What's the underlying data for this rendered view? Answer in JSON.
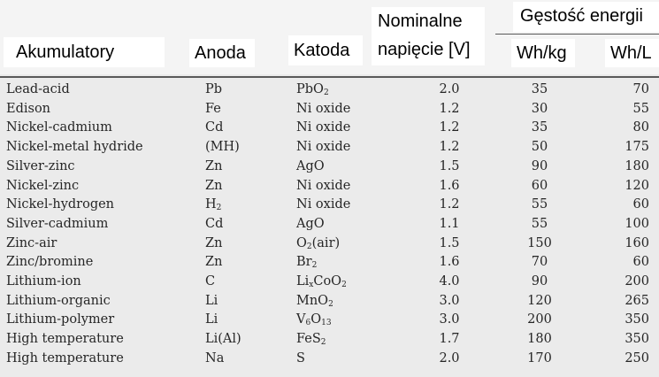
{
  "header": {
    "akumulatory": "Akumulatory",
    "anoda": "Anoda",
    "katoda": "Katoda",
    "nominalne_line1": "Nominalne",
    "nominalne_line2": "napięcie [V]",
    "gestosc": "Gęstość energii",
    "whkg": "Wh/kg",
    "whl": "Wh/L"
  },
  "rows": [
    {
      "name": "Lead-acid",
      "anode": "Pb",
      "cathode_pre": "PbO",
      "cathode_sub": "2",
      "cathode_post": "",
      "cathode_sub2": "",
      "voltage": "2.0",
      "whkg": "35",
      "whl": "70"
    },
    {
      "name": "Edison",
      "anode": "Fe",
      "cathode_pre": "Ni oxide",
      "cathode_sub": "",
      "cathode_post": "",
      "cathode_sub2": "",
      "voltage": "1.2",
      "whkg": "30",
      "whl": "55"
    },
    {
      "name": "Nickel-cadmium",
      "anode": "Cd",
      "cathode_pre": "Ni oxide",
      "cathode_sub": "",
      "cathode_post": "",
      "cathode_sub2": "",
      "voltage": "1.2",
      "whkg": "35",
      "whl": "80"
    },
    {
      "name": "Nickel-metal hydride",
      "anode": "(MH)",
      "cathode_pre": "Ni oxide",
      "cathode_sub": "",
      "cathode_post": "",
      "cathode_sub2": "",
      "voltage": "1.2",
      "whkg": "50",
      "whl": "175"
    },
    {
      "name": "Silver-zinc",
      "anode": "Zn",
      "cathode_pre": "AgO",
      "cathode_sub": "",
      "cathode_post": "",
      "cathode_sub2": "",
      "voltage": "1.5",
      "whkg": "90",
      "whl": "180"
    },
    {
      "name": "Nickel-zinc",
      "anode": "Zn",
      "cathode_pre": "Ni oxide",
      "cathode_sub": "",
      "cathode_post": "",
      "cathode_sub2": "",
      "voltage": "1.6",
      "whkg": "60",
      "whl": "120"
    },
    {
      "name": "Nickel-hydrogen",
      "anode": "H",
      "anode_sub": "2",
      "cathode_pre": "Ni oxide",
      "cathode_sub": "",
      "cathode_post": "",
      "cathode_sub2": "",
      "voltage": "1.2",
      "whkg": "55",
      "whl": "60"
    },
    {
      "name": "Silver-cadmium",
      "anode": "Cd",
      "cathode_pre": "AgO",
      "cathode_sub": "",
      "cathode_post": "",
      "cathode_sub2": "",
      "voltage": "1.1",
      "whkg": "55",
      "whl": "100"
    },
    {
      "name": "Zinc-air",
      "anode": "Zn",
      "cathode_pre": "O",
      "cathode_sub": "2",
      "cathode_post": "(air)",
      "cathode_sub2": "",
      "voltage": "1.5",
      "whkg": "150",
      "whl": "160"
    },
    {
      "name": "Zinc/bromine",
      "anode": "Zn",
      "cathode_pre": "Br",
      "cathode_sub": "2",
      "cathode_post": "",
      "cathode_sub2": "",
      "voltage": "1.6",
      "whkg": "70",
      "whl": "60"
    },
    {
      "name": "Lithium-ion",
      "anode": "C",
      "cathode_pre": "Li",
      "cathode_sub": "x",
      "cathode_post": "CoO",
      "cathode_sub2": "2",
      "voltage": "4.0",
      "whkg": "90",
      "whl": "200"
    },
    {
      "name": "Lithium-organic",
      "anode": "Li",
      "cathode_pre": "MnO",
      "cathode_sub": "2",
      "cathode_post": "",
      "cathode_sub2": "",
      "voltage": "3.0",
      "whkg": "120",
      "whl": "265"
    },
    {
      "name": "Lithium-polymer",
      "anode": "Li",
      "cathode_pre": "V",
      "cathode_sub": "6",
      "cathode_post": "O",
      "cathode_sub2": "13",
      "voltage": "3.0",
      "whkg": "200",
      "whl": "350"
    },
    {
      "name": "High temperature",
      "anode": "Li(Al)",
      "cathode_pre": "FeS",
      "cathode_sub": "2",
      "cathode_post": "",
      "cathode_sub2": "",
      "voltage": "1.7",
      "whkg": "180",
      "whl": "350"
    },
    {
      "name": "High temperature",
      "anode": "Na",
      "cathode_pre": "S",
      "cathode_sub": "",
      "cathode_post": "",
      "cathode_sub2": "",
      "voltage": "2.0",
      "whkg": "170",
      "whl": "250"
    }
  ]
}
